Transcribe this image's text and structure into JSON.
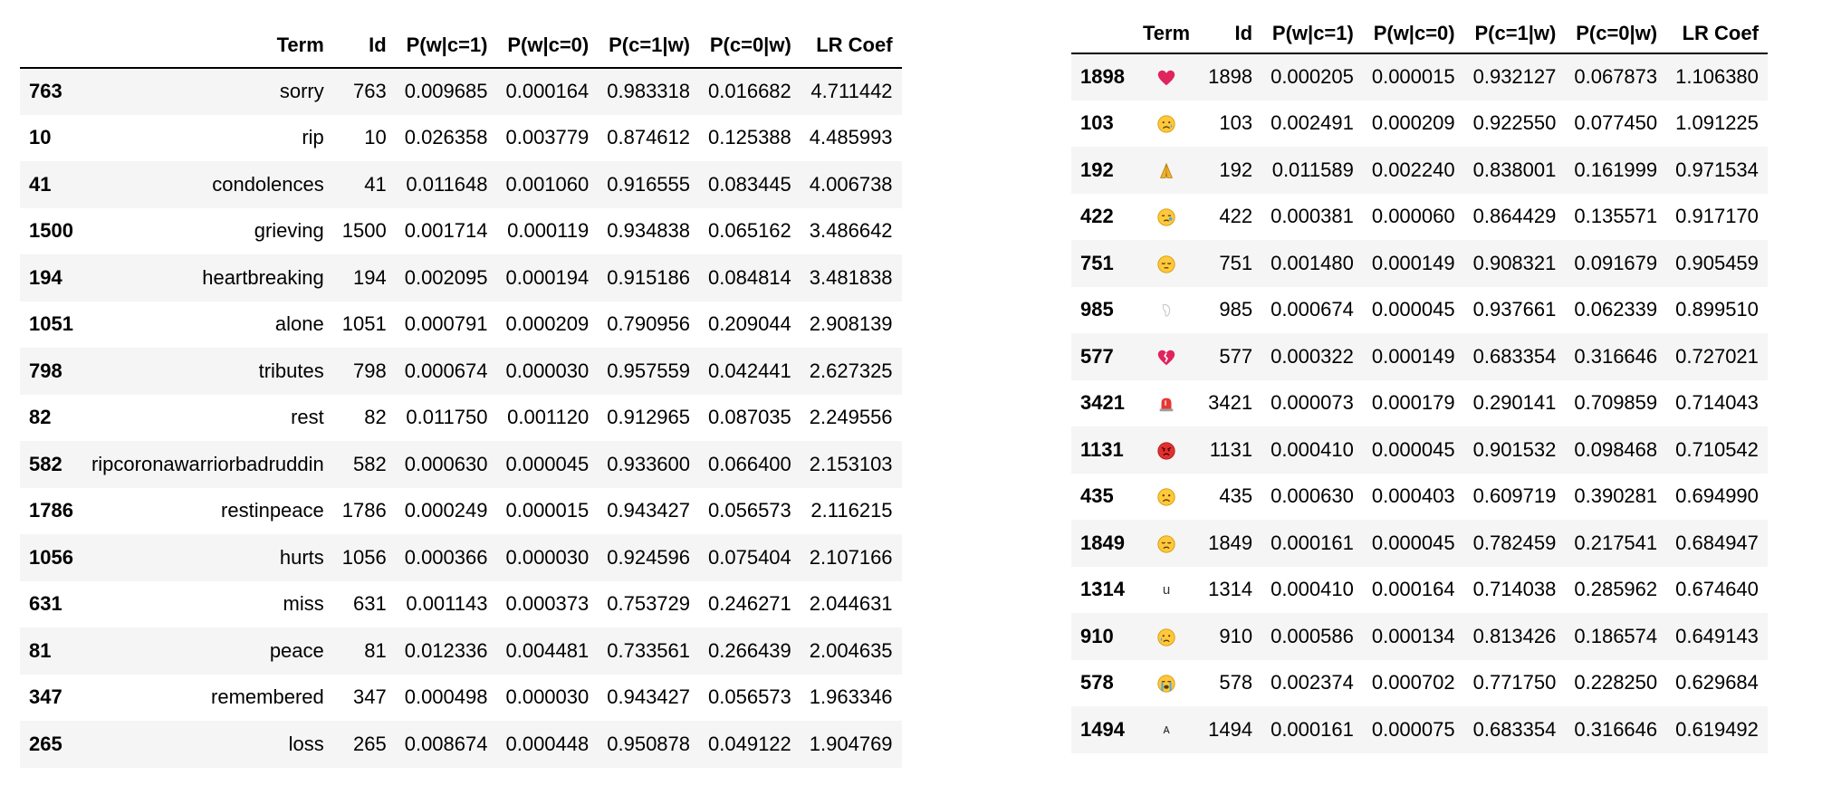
{
  "left_table": {
    "columns": [
      "",
      "Term",
      "Id",
      "P(w|c=1)",
      "P(w|c=0)",
      "P(c=1|w)",
      "P(c=0|w)",
      "LR Coef"
    ],
    "rows": [
      {
        "index": "763",
        "term": "sorry",
        "id": "763",
        "pw1": "0.009685",
        "pw0": "0.000164",
        "pc1": "0.983318",
        "pc0": "0.016682",
        "lr": "4.711442"
      },
      {
        "index": "10",
        "term": "rip",
        "id": "10",
        "pw1": "0.026358",
        "pw0": "0.003779",
        "pc1": "0.874612",
        "pc0": "0.125388",
        "lr": "4.485993"
      },
      {
        "index": "41",
        "term": "condolences",
        "id": "41",
        "pw1": "0.011648",
        "pw0": "0.001060",
        "pc1": "0.916555",
        "pc0": "0.083445",
        "lr": "4.006738"
      },
      {
        "index": "1500",
        "term": "grieving",
        "id": "1500",
        "pw1": "0.001714",
        "pw0": "0.000119",
        "pc1": "0.934838",
        "pc0": "0.065162",
        "lr": "3.486642"
      },
      {
        "index": "194",
        "term": "heartbreaking",
        "id": "194",
        "pw1": "0.002095",
        "pw0": "0.000194",
        "pc1": "0.915186",
        "pc0": "0.084814",
        "lr": "3.481838"
      },
      {
        "index": "1051",
        "term": "alone",
        "id": "1051",
        "pw1": "0.000791",
        "pw0": "0.000209",
        "pc1": "0.790956",
        "pc0": "0.209044",
        "lr": "2.908139"
      },
      {
        "index": "798",
        "term": "tributes",
        "id": "798",
        "pw1": "0.000674",
        "pw0": "0.000030",
        "pc1": "0.957559",
        "pc0": "0.042441",
        "lr": "2.627325"
      },
      {
        "index": "82",
        "term": "rest",
        "id": "82",
        "pw1": "0.011750",
        "pw0": "0.001120",
        "pc1": "0.912965",
        "pc0": "0.087035",
        "lr": "2.249556"
      },
      {
        "index": "582",
        "term": "ripcoronawarriorbadruddin",
        "id": "582",
        "pw1": "0.000630",
        "pw0": "0.000045",
        "pc1": "0.933600",
        "pc0": "0.066400",
        "lr": "2.153103"
      },
      {
        "index": "1786",
        "term": "restinpeace",
        "id": "1786",
        "pw1": "0.000249",
        "pw0": "0.000015",
        "pc1": "0.943427",
        "pc0": "0.056573",
        "lr": "2.116215"
      },
      {
        "index": "1056",
        "term": "hurts",
        "id": "1056",
        "pw1": "0.000366",
        "pw0": "0.000030",
        "pc1": "0.924596",
        "pc0": "0.075404",
        "lr": "2.107166"
      },
      {
        "index": "631",
        "term": "miss",
        "id": "631",
        "pw1": "0.001143",
        "pw0": "0.000373",
        "pc1": "0.753729",
        "pc0": "0.246271",
        "lr": "2.044631"
      },
      {
        "index": "81",
        "term": "peace",
        "id": "81",
        "pw1": "0.012336",
        "pw0": "0.004481",
        "pc1": "0.733561",
        "pc0": "0.266439",
        "lr": "2.004635"
      },
      {
        "index": "347",
        "term": "remembered",
        "id": "347",
        "pw1": "0.000498",
        "pw0": "0.000030",
        "pc1": "0.943427",
        "pc0": "0.056573",
        "lr": "1.963346"
      },
      {
        "index": "265",
        "term": "loss",
        "id": "265",
        "pw1": "0.008674",
        "pw0": "0.000448",
        "pc1": "0.950878",
        "pc0": "0.049122",
        "lr": "1.904769"
      }
    ]
  },
  "right_table": {
    "columns": [
      "",
      "Term",
      "Id",
      "P(w|c=1)",
      "P(w|c=0)",
      "P(c=1|w)",
      "P(c=0|w)",
      "LR Coef"
    ],
    "rows": [
      {
        "index": "1898",
        "term": "❤️",
        "icon": "red-heart-icon",
        "id": "1898",
        "pw1": "0.000205",
        "pw0": "0.000015",
        "pc1": "0.932127",
        "pc0": "0.067873",
        "lr": "1.106380"
      },
      {
        "index": "103",
        "term": "😥",
        "icon": "sad-relieved-face-icon",
        "id": "103",
        "pw1": "0.002491",
        "pw0": "0.000209",
        "pc1": "0.922550",
        "pc0": "0.077450",
        "lr": "1.091225"
      },
      {
        "index": "192",
        "term": "🙏",
        "icon": "folded-hands-icon",
        "id": "192",
        "pw1": "0.011589",
        "pw0": "0.002240",
        "pc1": "0.838001",
        "pc0": "0.161999",
        "lr": "0.971534"
      },
      {
        "index": "422",
        "term": "😪",
        "icon": "sleepy-face-icon",
        "id": "422",
        "pw1": "0.000381",
        "pw0": "0.000060",
        "pc1": "0.864429",
        "pc0": "0.135571",
        "lr": "0.917170"
      },
      {
        "index": "751",
        "term": "😔",
        "icon": "pensive-face-icon",
        "id": "751",
        "pw1": "0.001480",
        "pw0": "0.000149",
        "pc1": "0.908321",
        "pc0": "0.091679",
        "lr": "0.905459"
      },
      {
        "index": "985",
        "term": "🏻",
        "icon": "skin-tone-modifier-icon",
        "id": "985",
        "pw1": "0.000674",
        "pw0": "0.000045",
        "pc1": "0.937661",
        "pc0": "0.062339",
        "lr": "0.899510"
      },
      {
        "index": "577",
        "term": "💔",
        "icon": "broken-heart-icon",
        "id": "577",
        "pw1": "0.000322",
        "pw0": "0.000149",
        "pc1": "0.683354",
        "pc0": "0.316646",
        "lr": "0.727021"
      },
      {
        "index": "3421",
        "term": "🚨",
        "icon": "police-light-icon",
        "id": "3421",
        "pw1": "0.000073",
        "pw0": "0.000179",
        "pc1": "0.290141",
        "pc0": "0.709859",
        "lr": "0.714043"
      },
      {
        "index": "1131",
        "term": "😡",
        "icon": "angry-face-icon",
        "id": "1131",
        "pw1": "0.000410",
        "pw0": "0.000045",
        "pc1": "0.901532",
        "pc0": "0.098468",
        "lr": "0.710542"
      },
      {
        "index": "435",
        "term": "🙁",
        "icon": "frowning-face-icon",
        "id": "435",
        "pw1": "0.000630",
        "pw0": "0.000403",
        "pc1": "0.609719",
        "pc0": "0.390281",
        "lr": "0.694990"
      },
      {
        "index": "1849",
        "term": "😞",
        "icon": "disappointed-face-icon",
        "id": "1849",
        "pw1": "0.000161",
        "pw0": "0.000045",
        "pc1": "0.782459",
        "pc0": "0.217541",
        "lr": "0.684947"
      },
      {
        "index": "1314",
        "term": "u",
        "icon": "",
        "id": "1314",
        "pw1": "0.000410",
        "pw0": "0.000164",
        "pc1": "0.714038",
        "pc0": "0.285962",
        "lr": "0.674640"
      },
      {
        "index": "910",
        "term": "😢",
        "icon": "crying-face-icon",
        "id": "910",
        "pw1": "0.000586",
        "pw0": "0.000134",
        "pc1": "0.813426",
        "pc0": "0.186574",
        "lr": "0.649143"
      },
      {
        "index": "578",
        "term": "😭",
        "icon": "loudly-crying-face-icon",
        "id": "578",
        "pw1": "0.002374",
        "pw0": "0.000702",
        "pc1": "0.771750",
        "pc0": "0.228250",
        "lr": "0.629684"
      },
      {
        "index": "1494",
        "term": "ᴀ",
        "icon": "",
        "id": "1494",
        "pw1": "0.000161",
        "pw0": "0.000075",
        "pc1": "0.683354",
        "pc0": "0.316646",
        "lr": "0.619492"
      }
    ]
  },
  "colors": {
    "stripe": "#f5f5f5",
    "face_yellow": "#ffc83d",
    "face_outline": "#d69a00",
    "heart_red": "#e0245e",
    "angry_red": "#e0302f",
    "tear_blue": "#4aa8e8",
    "hands_gold": "#f0b030"
  }
}
